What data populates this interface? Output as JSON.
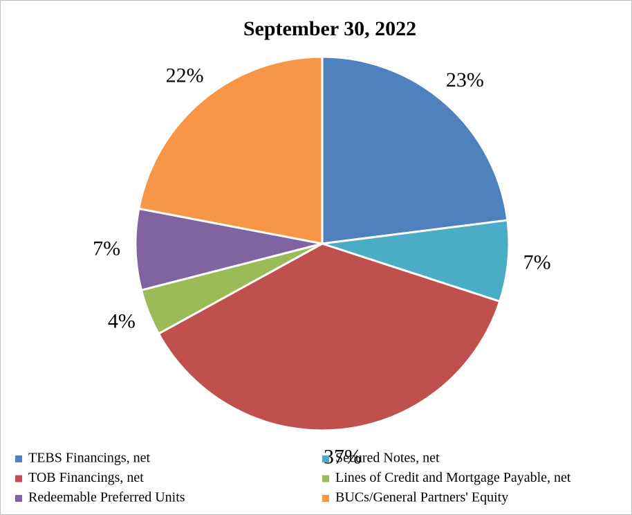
{
  "chart_data": {
    "type": "pie",
    "title": "September 30, 2022",
    "categories": [
      "TEBS Financings, net",
      "Secured Notes, net",
      "TOB Financings, net",
      "Lines of Credit and Mortgage Payable, net",
      "Redeemable Preferred Units",
      "BUCs/General Partners' Equity"
    ],
    "values": [
      23,
      7,
      37,
      4,
      7,
      22
    ],
    "value_labels": [
      "23%",
      "7%",
      "37%",
      "4%",
      "7%",
      "22%"
    ],
    "colors": [
      "#4f81bd",
      "#4bacc6",
      "#c0504d",
      "#9bbb59",
      "#8064a2",
      "#f79646"
    ],
    "legend": "bottom"
  }
}
